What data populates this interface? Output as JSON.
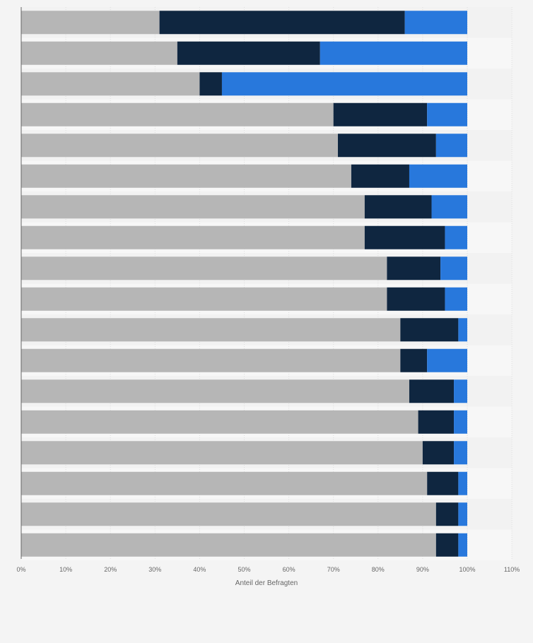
{
  "chart_data": {
    "type": "bar",
    "orientation": "horizontal",
    "stacked": true,
    "title": "",
    "xlabel": "Anteil der Befragten",
    "ylabel": "",
    "xlim": [
      0,
      110
    ],
    "x_ticks": [
      "0%",
      "10%",
      "20%",
      "30%",
      "40%",
      "50%",
      "60%",
      "70%",
      "80%",
      "90%",
      "100%",
      "110%"
    ],
    "grid": true,
    "legend": "none",
    "categories": [
      "",
      "",
      "",
      "",
      "",
      "",
      "",
      "",
      "",
      "",
      "",
      "",
      "",
      "",
      "",
      "",
      "",
      ""
    ],
    "series": [
      {
        "color": "#b6b6b6",
        "values": [
          31,
          35,
          40,
          70,
          71,
          74,
          77,
          77,
          82,
          82,
          85,
          85,
          87,
          89,
          90,
          91,
          93,
          93
        ]
      },
      {
        "color": "#0f2640",
        "values": [
          55,
          32,
          5,
          21,
          22,
          13,
          15,
          18,
          12,
          13,
          13,
          6,
          10,
          8,
          7,
          7,
          5,
          5
        ]
      },
      {
        "color": "#2878dc",
        "values": [
          14,
          33,
          55,
          9,
          7,
          13,
          8,
          5,
          6,
          5,
          2,
          9,
          3,
          3,
          3,
          2,
          2,
          2
        ]
      }
    ]
  }
}
